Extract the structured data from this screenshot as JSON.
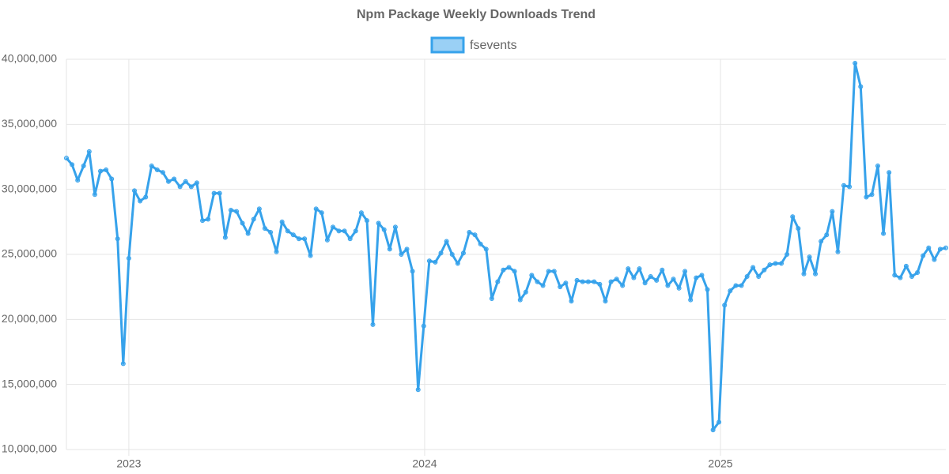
{
  "chart_data": {
    "type": "line",
    "title": "Npm Package Weekly Downloads Trend",
    "x": [
      2022.789,
      2022.808,
      2022.827,
      2022.847,
      2022.866,
      2022.885,
      2022.904,
      2022.923,
      2022.942,
      2022.962,
      2022.981,
      2023.0,
      2023.019,
      2023.038,
      2023.057,
      2023.077,
      2023.096,
      2023.115,
      2023.134,
      2023.153,
      2023.173,
      2023.192,
      2023.211,
      2023.23,
      2023.249,
      2023.268,
      2023.288,
      2023.307,
      2023.326,
      2023.345,
      2023.364,
      2023.384,
      2023.403,
      2023.422,
      2023.441,
      2023.46,
      2023.479,
      2023.499,
      2023.518,
      2023.537,
      2023.556,
      2023.575,
      2023.594,
      2023.614,
      2023.633,
      2023.652,
      2023.671,
      2023.69,
      2023.71,
      2023.729,
      2023.748,
      2023.767,
      2023.786,
      2023.805,
      2023.825,
      2023.844,
      2023.863,
      2023.882,
      2023.901,
      2023.921,
      2023.94,
      2023.959,
      2023.978,
      2023.997,
      2024.016,
      2024.036,
      2024.055,
      2024.074,
      2024.093,
      2024.112,
      2024.131,
      2024.151,
      2024.17,
      2024.189,
      2024.208,
      2024.227,
      2024.247,
      2024.266,
      2024.285,
      2024.304,
      2024.323,
      2024.342,
      2024.362,
      2024.381,
      2024.4,
      2024.419,
      2024.438,
      2024.458,
      2024.477,
      2024.496,
      2024.515,
      2024.534,
      2024.553,
      2024.573,
      2024.592,
      2024.611,
      2024.63,
      2024.649,
      2024.669,
      2024.688,
      2024.707,
      2024.726,
      2024.745,
      2024.764,
      2024.784,
      2024.803,
      2024.822,
      2024.841,
      2024.86,
      2024.88,
      2024.899,
      2024.918,
      2024.937,
      2024.956,
      2024.975,
      2024.995,
      2025.014,
      2025.033,
      2025.052,
      2025.071,
      2025.09,
      2025.11,
      2025.129,
      2025.148,
      2025.167,
      2025.186,
      2025.206,
      2025.225,
      2025.244,
      2025.263,
      2025.282,
      2025.301,
      2025.321,
      2025.34,
      2025.359,
      2025.378,
      2025.397,
      2025.417,
      2025.436,
      2025.455,
      2025.474,
      2025.493,
      2025.512,
      2025.532,
      2025.551,
      2025.57,
      2025.589,
      2025.608,
      2025.628,
      2025.647,
      2025.666,
      2025.685,
      2025.704,
      2025.723,
      2025.743,
      2025.762
    ],
    "series": [
      {
        "name": "fsevents",
        "color": "#36a2eb",
        "values": [
          32400000,
          31900000,
          30700000,
          31800000,
          32900000,
          29600000,
          31400000,
          31500000,
          30800000,
          26200000,
          16600000,
          24700000,
          29900000,
          29100000,
          29400000,
          31800000,
          31500000,
          31300000,
          30600000,
          30800000,
          30200000,
          30600000,
          30200000,
          30500000,
          27600000,
          27700000,
          29700000,
          29700000,
          26300000,
          28400000,
          28300000,
          27400000,
          26600000,
          27700000,
          28500000,
          27000000,
          26700000,
          25200000,
          27500000,
          26800000,
          26500000,
          26200000,
          26200000,
          24900000,
          28500000,
          28200000,
          26100000,
          27100000,
          26800000,
          26800000,
          26200000,
          26800000,
          28200000,
          27600000,
          19600000,
          27400000,
          26900000,
          25400000,
          27100000,
          25000000,
          25400000,
          23700000,
          14600000,
          19500000,
          24500000,
          24400000,
          25100000,
          26000000,
          25000000,
          24300000,
          25100000,
          26700000,
          26500000,
          25800000,
          25400000,
          21600000,
          22900000,
          23800000,
          24000000,
          23700000,
          21500000,
          22100000,
          23400000,
          22900000,
          22600000,
          23700000,
          23700000,
          22500000,
          22800000,
          21400000,
          23000000,
          22900000,
          22900000,
          22900000,
          22700000,
          21400000,
          22900000,
          23100000,
          22600000,
          23900000,
          23200000,
          23900000,
          22800000,
          23300000,
          23000000,
          23800000,
          22600000,
          23100000,
          22400000,
          23700000,
          21500000,
          23200000,
          23400000,
          22300000,
          11500000,
          12100000,
          21100000,
          22200000,
          22600000,
          22600000,
          23300000,
          24000000,
          23300000,
          23800000,
          24200000,
          24300000,
          24300000,
          25000000,
          27900000,
          27000000,
          23500000,
          24800000,
          23500000,
          26000000,
          26500000,
          28300000,
          25200000,
          30300000,
          30200000,
          39700000,
          37900000,
          29400000,
          29600000,
          31800000,
          26600000,
          31300000,
          23400000,
          23200000,
          24100000,
          23300000,
          23600000,
          24900000,
          25500000,
          24600000,
          25400000,
          25500000
        ]
      }
    ],
    "xlim": [
      2022.789,
      2025.762
    ],
    "xticks": [
      2023,
      2024,
      2025
    ],
    "ylim": [
      10000000,
      40000000
    ],
    "yticks": [
      {
        "value": 10000000,
        "label": "10,000,000"
      },
      {
        "value": 15000000,
        "label": "15,000,000"
      },
      {
        "value": 20000000,
        "label": "20,000,000"
      },
      {
        "value": 25000000,
        "label": "25,000,000"
      },
      {
        "value": 30000000,
        "label": "30,000,000"
      },
      {
        "value": 35000000,
        "label": "35,000,000"
      },
      {
        "value": 40000000,
        "label": "40,000,000"
      }
    ],
    "grid": true,
    "legend": "top"
  }
}
